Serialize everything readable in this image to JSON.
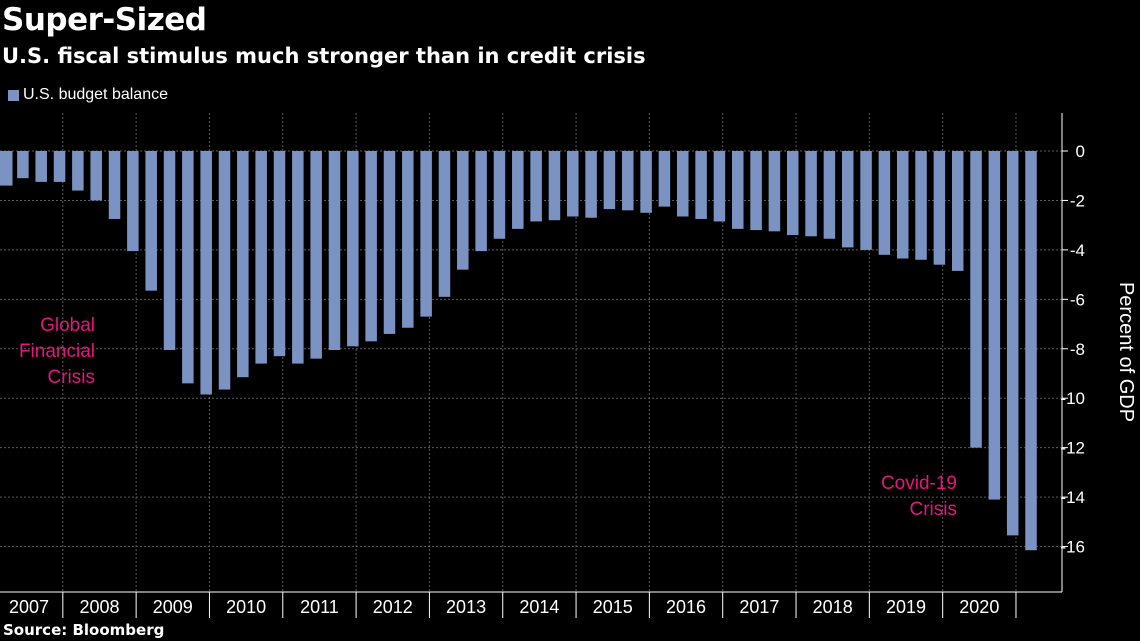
{
  "header": {
    "title": "Super-Sized",
    "subtitle": "U.S. fiscal stimulus much stronger than in credit crisis"
  },
  "footer": {
    "source": "Source: Bloomberg"
  },
  "colors": {
    "background": "#000000",
    "bar": "#7b93c3",
    "annotation": "#e8137e",
    "grid": "#5a5a5a",
    "text": "#ffffff"
  },
  "chart_data": {
    "type": "bar",
    "title": "Super-Sized",
    "subtitle": "U.S. fiscal stimulus much stronger than in credit crisis",
    "ylabel": "Percent of GDP",
    "xlabel": "",
    "ylim": [
      -17.2,
      1.6
    ],
    "yticks": [
      0,
      -2,
      -4,
      -6,
      -8,
      -10,
      -12,
      -14,
      -16
    ],
    "ytick_labels": [
      "0",
      "-2",
      "-4",
      "-6",
      "-8",
      "-10",
      "-12",
      "-14",
      "-16"
    ],
    "year_labels": [
      "2007",
      "2008",
      "2009",
      "2010",
      "2011",
      "2012",
      "2013",
      "2014",
      "2015",
      "2016",
      "2017",
      "2018",
      "2019",
      "2020"
    ],
    "grid": "dashed vertical at year boundaries, dashed horizontal at y ticks",
    "legend": "top-left",
    "series": [
      {
        "name": "U.S. budget balance",
        "categories": [
          "2007 Q1",
          "2007 Q2",
          "2007 Q3",
          "2007 Q4",
          "2008 Q1",
          "2008 Q2",
          "2008 Q3",
          "2008 Q4",
          "2009 Q1",
          "2009 Q2",
          "2009 Q3",
          "2009 Q4",
          "2010 Q1",
          "2010 Q2",
          "2010 Q3",
          "2010 Q4",
          "2011 Q1",
          "2011 Q2",
          "2011 Q3",
          "2011 Q4",
          "2012 Q1",
          "2012 Q2",
          "2012 Q3",
          "2012 Q4",
          "2013 Q1",
          "2013 Q2",
          "2013 Q3",
          "2013 Q4",
          "2014 Q1",
          "2014 Q2",
          "2014 Q3",
          "2014 Q4",
          "2015 Q1",
          "2015 Q2",
          "2015 Q3",
          "2015 Q4",
          "2016 Q1",
          "2016 Q2",
          "2016 Q3",
          "2016 Q4",
          "2017 Q1",
          "2017 Q2",
          "2017 Q3",
          "2017 Q4",
          "2018 Q1",
          "2018 Q2",
          "2018 Q3",
          "2018 Q4",
          "2019 Q1",
          "2019 Q2",
          "2019 Q3",
          "2019 Q4",
          "2020 Q1",
          "2020 Q2",
          "2020 Q3",
          "2020 Q4",
          "2021 Q1"
        ],
        "values": [
          -1.4,
          -1.1,
          -1.25,
          -1.25,
          -1.6,
          -2.0,
          -2.75,
          -4.05,
          -5.65,
          -8.05,
          -9.4,
          -9.85,
          -9.65,
          -9.15,
          -8.6,
          -8.3,
          -8.6,
          -8.4,
          -8.05,
          -7.9,
          -7.7,
          -7.4,
          -7.15,
          -6.7,
          -5.9,
          -4.8,
          -4.05,
          -3.55,
          -3.15,
          -2.85,
          -2.8,
          -2.65,
          -2.7,
          -2.35,
          -2.4,
          -2.5,
          -2.25,
          -2.65,
          -2.75,
          -2.85,
          -3.15,
          -3.2,
          -3.25,
          -3.4,
          -3.45,
          -3.55,
          -3.9,
          -4.0,
          -4.2,
          -4.35,
          -4.4,
          -4.6,
          -4.85,
          -12.0,
          -14.1,
          -15.55,
          -16.15
        ]
      }
    ],
    "annotations": [
      {
        "text_lines": [
          "Global",
          "Financial",
          "Crisis"
        ]
      },
      {
        "text_lines": [
          "Covid-19",
          "Crisis"
        ]
      }
    ]
  }
}
